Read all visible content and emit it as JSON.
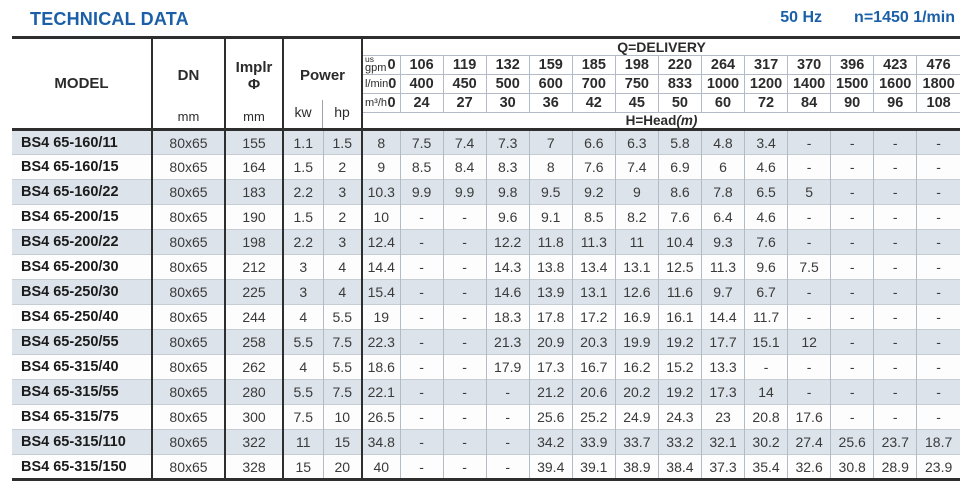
{
  "page": {
    "title": "TECHNICAL DATA",
    "frequency_label": "50 Hz",
    "speed_label": "n=1450 1/min",
    "accent_color": "#1a5fa8",
    "stripe_color": "#dce3ea"
  },
  "table": {
    "header": {
      "model": "MODEL",
      "dn": "DN",
      "dn_unit": "mm",
      "impeller_line1": "Implr",
      "impeller_symbol": "Φ",
      "impeller_unit": "mm",
      "power": "Power",
      "kw_unit": "kw",
      "hp_unit": "hp",
      "delivery_title": "Q=DELIVERY",
      "head_title": "H=Head",
      "head_unit_italic": "(m)"
    },
    "delivery_scale_rows": [
      {
        "unit_top": "us",
        "unit": "gpm",
        "zero": "0",
        "values": [
          "106",
          "119",
          "132",
          "159",
          "185",
          "198",
          "220",
          "264",
          "317",
          "370",
          "396",
          "423",
          "476"
        ]
      },
      {
        "unit_top": "",
        "unit": "l/min",
        "zero": "0",
        "values": [
          "400",
          "450",
          "500",
          "600",
          "700",
          "750",
          "833",
          "1000",
          "1200",
          "1400",
          "1500",
          "1600",
          "1800"
        ]
      },
      {
        "unit_top": "",
        "unit": "m³/h",
        "zero": "0",
        "values": [
          "24",
          "27",
          "30",
          "36",
          "42",
          "45",
          "50",
          "60",
          "72",
          "84",
          "90",
          "96",
          "108"
        ]
      }
    ],
    "rows": [
      {
        "model": "BS4 65-160/11",
        "dn": "80x65",
        "impeller": "155",
        "kw": "1.1",
        "hp": "1.5",
        "head": [
          "8",
          "7.5",
          "7.4",
          "7.3",
          "7",
          "6.6",
          "6.3",
          "5.8",
          "4.8",
          "3.4",
          "-",
          "-",
          "-",
          "-"
        ]
      },
      {
        "model": "BS4 65-160/15",
        "dn": "80x65",
        "impeller": "164",
        "kw": "1.5",
        "hp": "2",
        "head": [
          "9",
          "8.5",
          "8.4",
          "8.3",
          "8",
          "7.6",
          "7.4",
          "6.9",
          "6",
          "4.6",
          "-",
          "-",
          "-",
          "-"
        ]
      },
      {
        "model": "BS4 65-160/22",
        "dn": "80x65",
        "impeller": "183",
        "kw": "2.2",
        "hp": "3",
        "head": [
          "10.3",
          "9.9",
          "9.9",
          "9.8",
          "9.5",
          "9.2",
          "9",
          "8.6",
          "7.8",
          "6.5",
          "5",
          "-",
          "-",
          "-"
        ]
      },
      {
        "model": "BS4 65-200/15",
        "dn": "80x65",
        "impeller": "190",
        "kw": "1.5",
        "hp": "2",
        "head": [
          "10",
          "-",
          "-",
          "9.6",
          "9.1",
          "8.5",
          "8.2",
          "7.6",
          "6.4",
          "4.6",
          "-",
          "-",
          "-",
          "-"
        ]
      },
      {
        "model": "BS4 65-200/22",
        "dn": "80x65",
        "impeller": "198",
        "kw": "2.2",
        "hp": "3",
        "head": [
          "12.4",
          "-",
          "-",
          "12.2",
          "11.8",
          "11.3",
          "11",
          "10.4",
          "9.3",
          "7.6",
          "-",
          "-",
          "-",
          "-"
        ]
      },
      {
        "model": "BS4 65-200/30",
        "dn": "80x65",
        "impeller": "212",
        "kw": "3",
        "hp": "4",
        "head": [
          "14.4",
          "-",
          "-",
          "14.3",
          "13.8",
          "13.4",
          "13.1",
          "12.5",
          "11.3",
          "9.6",
          "7.5",
          "-",
          "-",
          "-"
        ]
      },
      {
        "model": "BS4 65-250/30",
        "dn": "80x65",
        "impeller": "225",
        "kw": "3",
        "hp": "4",
        "head": [
          "15.4",
          "-",
          "-",
          "14.6",
          "13.9",
          "13.1",
          "12.6",
          "11.6",
          "9.7",
          "6.7",
          "-",
          "-",
          "-",
          "-"
        ]
      },
      {
        "model": "BS4 65-250/40",
        "dn": "80x65",
        "impeller": "244",
        "kw": "4",
        "hp": "5.5",
        "head": [
          "19",
          "-",
          "-",
          "18.3",
          "17.8",
          "17.2",
          "16.9",
          "16.1",
          "14.4",
          "11.7",
          "-",
          "-",
          "-",
          "-"
        ]
      },
      {
        "model": "BS4 65-250/55",
        "dn": "80x65",
        "impeller": "258",
        "kw": "5.5",
        "hp": "7.5",
        "head": [
          "22.3",
          "-",
          "-",
          "21.3",
          "20.9",
          "20.3",
          "19.9",
          "19.2",
          "17.7",
          "15.1",
          "12",
          "-",
          "-",
          "-"
        ]
      },
      {
        "model": "BS4 65-315/40",
        "dn": "80x65",
        "impeller": "262",
        "kw": "4",
        "hp": "5.5",
        "head": [
          "18.6",
          "-",
          "-",
          "17.9",
          "17.3",
          "16.7",
          "16.2",
          "15.2",
          "13.3",
          "-",
          "-",
          "-",
          "-",
          "-"
        ]
      },
      {
        "model": "BS4 65-315/55",
        "dn": "80x65",
        "impeller": "280",
        "kw": "5.5",
        "hp": "7.5",
        "head": [
          "22.1",
          "-",
          "-",
          "-",
          "21.2",
          "20.6",
          "20.2",
          "19.2",
          "17.3",
          "14",
          "-",
          "-",
          "-",
          "-"
        ]
      },
      {
        "model": "BS4 65-315/75",
        "dn": "80x65",
        "impeller": "300",
        "kw": "7.5",
        "hp": "10",
        "head": [
          "26.5",
          "-",
          "-",
          "-",
          "25.6",
          "25.2",
          "24.9",
          "24.3",
          "23",
          "20.8",
          "17.6",
          "-",
          "-",
          "-"
        ]
      },
      {
        "model": "BS4 65-315/110",
        "dn": "80x65",
        "impeller": "322",
        "kw": "11",
        "hp": "15",
        "head": [
          "34.8",
          "-",
          "-",
          "-",
          "34.2",
          "33.9",
          "33.7",
          "33.2",
          "32.1",
          "30.2",
          "27.4",
          "25.6",
          "23.7",
          "18.7"
        ]
      },
      {
        "model": "BS4 65-315/150",
        "dn": "80x65",
        "impeller": "328",
        "kw": "15",
        "hp": "20",
        "head": [
          "40",
          "-",
          "-",
          "-",
          "39.4",
          "39.1",
          "38.9",
          "38.4",
          "37.3",
          "35.4",
          "32.6",
          "30.8",
          "28.9",
          "23.9"
        ]
      }
    ]
  }
}
